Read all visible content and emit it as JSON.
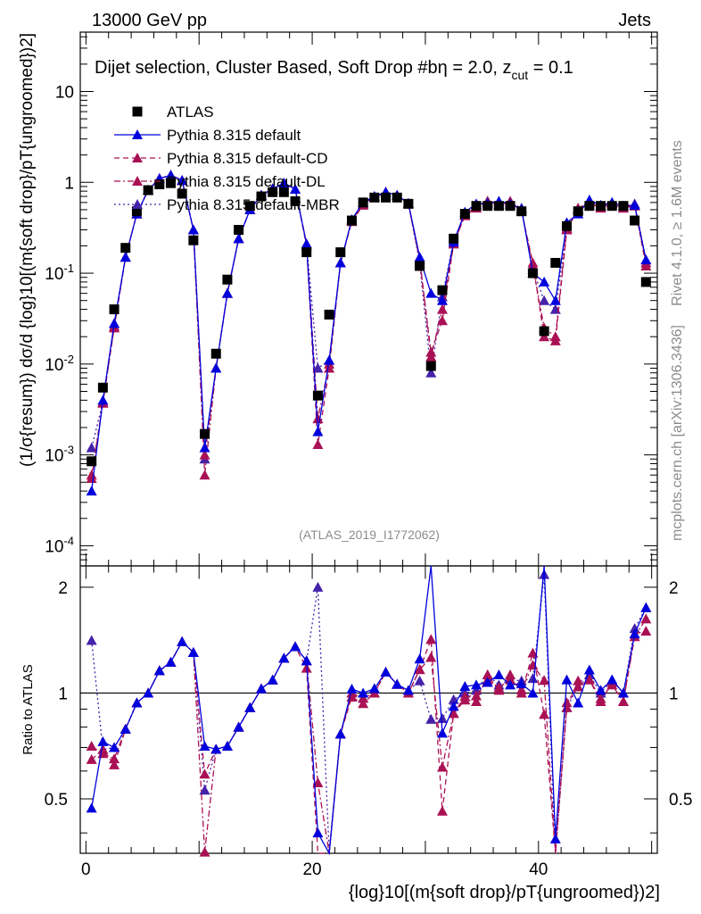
{
  "header": {
    "left": "13000 GeV pp",
    "right": "Jets",
    "selection": "Dijet selection, Cluster Based, Soft Drop #b",
    "params": "η = 2.0, z",
    "params_sub": "cut",
    "params_end": " = 0.1"
  },
  "side_labels": {
    "rivet": "Rivet 4.1.0, ≥ 1.6M events",
    "mcplots": "mcplots.cern.ch [arXiv:1306.3436]"
  },
  "watermark": "(ATLAS_2019_I1772062)",
  "axis_labels": {
    "y_main": "(1/σ{resum}) dσ/d {log}10[(m{soft drop}/pT{ungroomed})2]",
    "y_ratio": "Ratio to ATLAS",
    "x": "{log}10[(m{soft drop}/pT{ungroomed})2]"
  },
  "colors": {
    "atlas": "#000000",
    "default": "#0000dd",
    "cd": "#aa1155",
    "dl": "#aa1155",
    "mbr": "#4422aa"
  },
  "chart_data": {
    "type": "scatter",
    "title": "Dijet selection, Cluster Based, Soft Drop #b η = 2.0, z_cut = 0.1",
    "xlabel": "{log}10[(m{soft drop}/pT{ungroomed})2]",
    "ylabel": "(1/σ{resum}) dσ/d {log}10[(m{soft drop}/pT{ungroomed})2]",
    "xlim": [
      -0.5,
      50.5
    ],
    "ylim": [
      6e-05,
      45
    ],
    "yscale": "log",
    "ratio_ylim": [
      0.35,
      2.3
    ],
    "x_ticks": [
      "0",
      "20",
      "40"
    ],
    "x_tick_values": [
      0,
      20,
      40
    ],
    "y_ticks": [
      "10-4",
      "10-3",
      "10-2",
      "10-1",
      "1",
      "10"
    ],
    "y_tick_values": [
      0.0001,
      0.001,
      0.01,
      0.1,
      1,
      10
    ],
    "ratio_ticks": [
      "0.5",
      "1",
      "2"
    ],
    "ratio_tick_values": [
      0.5,
      1,
      2
    ],
    "x": [
      0.5,
      1.5,
      2.5,
      3.5,
      4.5,
      5.5,
      6.5,
      7.5,
      8.5,
      9.5,
      10.5,
      11.5,
      12.5,
      13.5,
      14.5,
      15.5,
      16.5,
      17.5,
      18.5,
      19.5,
      20.5,
      21.5,
      22.5,
      23.5,
      24.5,
      25.5,
      26.5,
      27.5,
      28.5,
      29.5,
      30.5,
      31.5,
      32.5,
      33.5,
      34.5,
      35.5,
      36.5,
      37.5,
      38.5,
      39.5,
      40.5,
      41.5,
      42.5,
      43.5,
      44.5,
      45.5,
      46.5,
      47.5,
      48.5,
      49.5
    ],
    "legend": [
      "ATLAS",
      "Pythia 8.315 default",
      "Pythia 8.315 default-CD",
      "Pythia 8.315 default-DL",
      "Pythia 8.315 default-MBR"
    ],
    "series": [
      {
        "name": "ATLAS",
        "marker": "square",
        "style": "marker",
        "values": [
          0.00085,
          0.0055,
          0.04,
          0.19,
          0.48,
          0.82,
          0.95,
          0.98,
          0.75,
          0.23,
          0.0017,
          0.013,
          0.085,
          0.3,
          0.55,
          0.7,
          0.78,
          0.78,
          0.62,
          0.17,
          0.0045,
          0.035,
          0.17,
          0.38,
          0.6,
          0.68,
          0.68,
          0.68,
          0.58,
          0.12,
          0.0095,
          0.065,
          0.24,
          0.45,
          0.55,
          0.55,
          0.55,
          0.55,
          0.48,
          0.1,
          0.023,
          0.13,
          0.33,
          0.48,
          0.55,
          0.55,
          0.55,
          0.55,
          0.38,
          0.08
        ]
      },
      {
        "name": "Pythia 8.315 default",
        "marker": "triangle",
        "style": "solid",
        "values": [
          0.0004,
          0.004,
          0.028,
          0.15,
          0.45,
          0.82,
          1.1,
          1.2,
          1.05,
          0.3,
          0.0012,
          0.009,
          0.06,
          0.24,
          0.5,
          0.72,
          0.85,
          0.98,
          0.84,
          0.21,
          0.0018,
          0.011,
          0.13,
          0.39,
          0.6,
          0.7,
          0.78,
          0.72,
          0.59,
          0.15,
          0.06,
          0.05,
          0.22,
          0.47,
          0.58,
          0.59,
          0.62,
          0.58,
          0.51,
          0.1,
          0.08,
          0.05,
          0.36,
          0.45,
          0.64,
          0.56,
          0.6,
          0.55,
          0.56,
          0.14
        ]
      },
      {
        "name": "Pythia 8.315 default-CD",
        "marker": "triangle",
        "style": "dash",
        "values": [
          0.00055,
          0.0038,
          0.025,
          0.15,
          0.45,
          0.82,
          1.1,
          1.2,
          1.05,
          0.3,
          0.001,
          0.009,
          0.06,
          0.24,
          0.5,
          0.72,
          0.85,
          0.98,
          0.84,
          0.2,
          0.0013,
          0.009,
          0.13,
          0.37,
          0.56,
          0.68,
          0.78,
          0.72,
          0.58,
          0.14,
          0.0135,
          0.03,
          0.21,
          0.43,
          0.52,
          0.62,
          0.56,
          0.62,
          0.48,
          0.13,
          0.02,
          0.018,
          0.3,
          0.52,
          0.6,
          0.52,
          0.59,
          0.52,
          0.56,
          0.12
        ]
      },
      {
        "name": "Pythia 8.315 default-DL",
        "marker": "triangle",
        "style": "dashdot",
        "values": [
          0.0006,
          0.0037,
          0.026,
          0.15,
          0.45,
          0.82,
          1.1,
          1.2,
          1.05,
          0.3,
          0.0006,
          0.009,
          0.06,
          0.24,
          0.5,
          0.72,
          0.85,
          0.98,
          0.84,
          0.21,
          0.0025,
          0.01,
          0.13,
          0.38,
          0.58,
          0.68,
          0.78,
          0.72,
          0.58,
          0.14,
          0.012,
          0.04,
          0.21,
          0.44,
          0.54,
          0.6,
          0.57,
          0.6,
          0.49,
          0.12,
          0.025,
          0.02,
          0.31,
          0.5,
          0.6,
          0.53,
          0.58,
          0.52,
          0.55,
          0.13
        ]
      },
      {
        "name": "Pythia 8.315 default-MBR",
        "marker": "triangle",
        "style": "dot",
        "values": [
          0.0012,
          0.0038,
          0.028,
          0.15,
          0.45,
          0.82,
          1.1,
          1.2,
          1.05,
          0.3,
          0.0009,
          0.009,
          0.06,
          0.24,
          0.5,
          0.72,
          0.85,
          0.98,
          0.84,
          0.21,
          0.009,
          0.011,
          0.13,
          0.38,
          0.58,
          0.7,
          0.78,
          0.72,
          0.59,
          0.13,
          0.008,
          0.055,
          0.23,
          0.45,
          0.56,
          0.62,
          0.58,
          0.6,
          0.52,
          0.11,
          0.05,
          0.04,
          0.3,
          0.5,
          0.62,
          0.55,
          0.6,
          0.55,
          0.58,
          0.14
        ]
      }
    ]
  }
}
